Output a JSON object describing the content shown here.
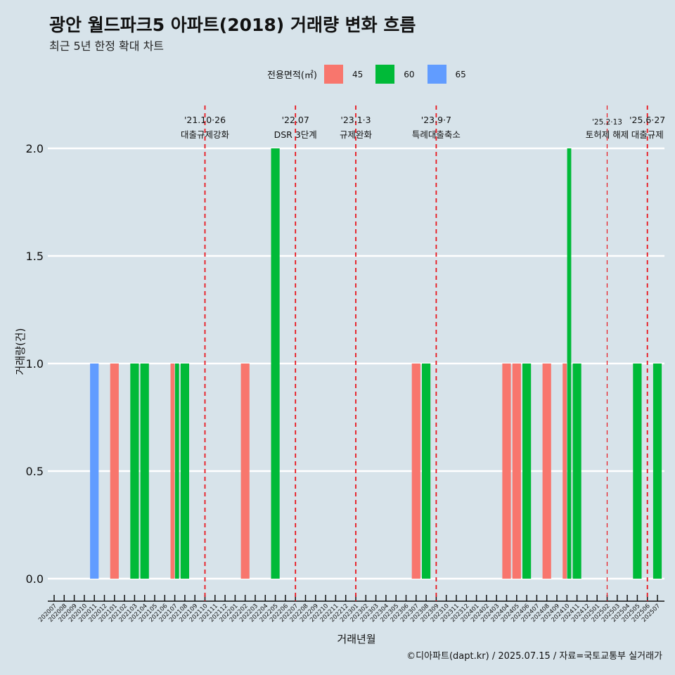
{
  "title": "광안 월드파크5 아파트(2018) 거래량 변화 흐름",
  "subtitle": "최근 5년 한정 확대 차트",
  "caption": "©디아파트(dapt.kr) / 2025.07.15 / 자료=국토교통부 실거래가",
  "chart_data": {
    "type": "bar",
    "xlabel": "거래년월",
    "ylabel": "거래량(건)",
    "ylim": [
      -0.1,
      2.2
    ],
    "yticks": [
      "0.0",
      "0.5",
      "1.0",
      "1.5",
      "2.0"
    ],
    "legend_title": "전용면적(㎡)",
    "legend_position": "top",
    "categories": [
      "202007",
      "202008",
      "202009",
      "202010",
      "202011",
      "202012",
      "202101",
      "202102",
      "202103",
      "202104",
      "202105",
      "202106",
      "202107",
      "202108",
      "202109",
      "202110",
      "202111",
      "202112",
      "202201",
      "202202",
      "202203",
      "202204",
      "202205",
      "202206",
      "202207",
      "202208",
      "202209",
      "202210",
      "202211",
      "202212",
      "202301",
      "202302",
      "202303",
      "202304",
      "202305",
      "202306",
      "202307",
      "202308",
      "202309",
      "202310",
      "202311",
      "202312",
      "202401",
      "202402",
      "202403",
      "202404",
      "202405",
      "202406",
      "202407",
      "202408",
      "202409",
      "202410",
      "202411",
      "202412",
      "202501",
      "202502",
      "202503",
      "202504",
      "202505",
      "202506",
      "202507"
    ],
    "series": [
      {
        "name": "45",
        "color": "#f8766d",
        "values": {
          "202101": 1,
          "202107": 1,
          "202202": 1,
          "202307": 1,
          "202404": 1,
          "202405": 1,
          "202408": 1,
          "202410": 1
        }
      },
      {
        "name": "60",
        "color": "#00ba38",
        "values": {
          "202103": 1,
          "202104": 1,
          "202107": 1,
          "202108": 1,
          "202205": 2,
          "202308": 1,
          "202406": 1,
          "202410": 2,
          "202411": 1,
          "202505": 1,
          "202507": 1
        }
      },
      {
        "name": "65",
        "color": "#619cff",
        "values": {
          "202011": 1
        }
      }
    ],
    "events": [
      {
        "month": "202110",
        "date": "'21.10·26",
        "label": "대출규제강화",
        "small": false
      },
      {
        "month": "202207",
        "date": "'22.07",
        "label": "DSR 3단계",
        "small": false
      },
      {
        "month": "202301",
        "date": "'23.1·3",
        "label": "규제완화",
        "small": false
      },
      {
        "month": "202309",
        "date": "'23.9·7",
        "label": "특례대출축소",
        "small": false
      },
      {
        "month": "202502",
        "date": "'25.2·13",
        "label": "토허제 해제",
        "small": true
      },
      {
        "month": "202506",
        "date": "'25.6·27",
        "label": "대출규제",
        "small": false
      }
    ]
  }
}
